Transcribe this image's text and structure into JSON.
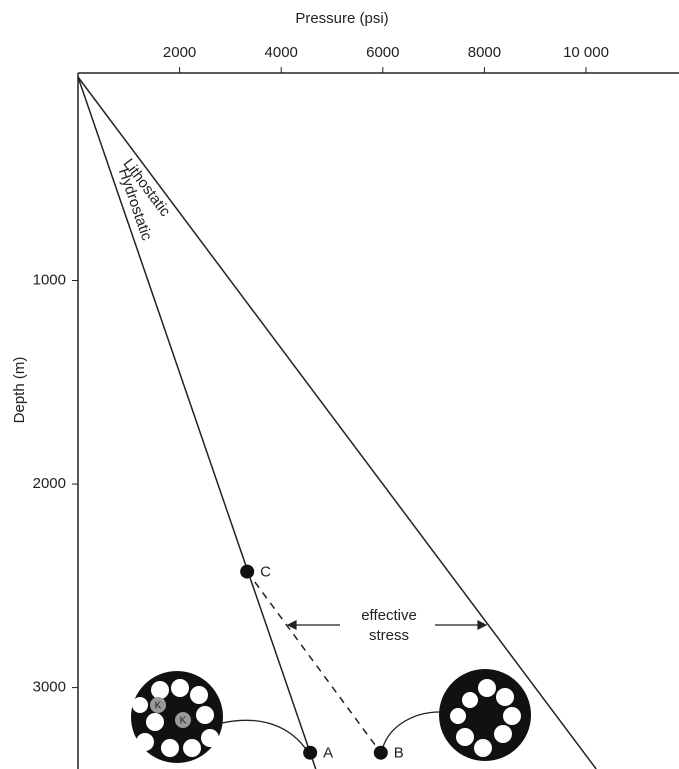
{
  "chart_data": {
    "type": "line",
    "xlabel": "Pressure (psi)",
    "ylabel": "Depth (m)",
    "xlim": [
      0,
      11830
    ],
    "ylim": [
      0,
      3400
    ],
    "y_inverted": true,
    "x_axis_position": "top",
    "xticks": [
      2000,
      4000,
      6000,
      8000,
      {
        "value": 10000,
        "label": "10 000"
      }
    ],
    "yticks": [
      1000,
      2000,
      3000
    ],
    "color": "#222222",
    "series": [
      {
        "name": "Hydrostatic",
        "x": [
          0,
          4680
        ],
        "values": [
          0,
          3400
        ]
      },
      {
        "name": "Lithostatic",
        "x": [
          0,
          10200
        ],
        "values": [
          0,
          3400
        ]
      }
    ],
    "points": [
      {
        "label": "C",
        "x": 3330,
        "y": 2430
      },
      {
        "label": "A",
        "x": 4570,
        "y": 3320
      },
      {
        "label": "B",
        "x": 5960,
        "y": 3320
      }
    ],
    "annotation": "effective\nstress",
    "grain_labels": [
      "K",
      "K"
    ]
  }
}
